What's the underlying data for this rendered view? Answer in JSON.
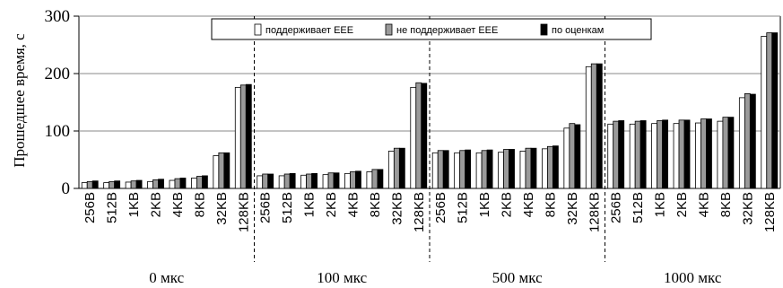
{
  "chart_data": {
    "type": "bar",
    "ylabel": "Прошедшее время, с",
    "ylim": [
      0,
      300
    ],
    "yticks": [
      0,
      100,
      200,
      300
    ],
    "grid": true,
    "legend_position": "top-right",
    "categories": [
      "256B",
      "512B",
      "1KB",
      "2KB",
      "4KB",
      "8KB",
      "32KB",
      "128KB"
    ],
    "groups": [
      "0 мкс",
      "100 мкс",
      "500 мкс",
      "1000 мкс"
    ],
    "series": [
      {
        "name": "поддерживает EEE",
        "color": "#ffffff",
        "values": [
          [
            10,
            10,
            11,
            12,
            14,
            18,
            57,
            176
          ],
          [
            22,
            22,
            23,
            24,
            26,
            29,
            65,
            176
          ],
          [
            62,
            62,
            62,
            63,
            65,
            69,
            105,
            212
          ],
          [
            112,
            112,
            113,
            113,
            114,
            117,
            158,
            265
          ]
        ]
      },
      {
        "name": "не поддерживает EEE",
        "color": "#9a9a9a",
        "values": [
          [
            12,
            12,
            13,
            15,
            17,
            21,
            62,
            180
          ],
          [
            25,
            25,
            25,
            27,
            29,
            33,
            70,
            184
          ],
          [
            66,
            66,
            66,
            68,
            70,
            73,
            113,
            217
          ],
          [
            117,
            117,
            118,
            119,
            121,
            124,
            165,
            271
          ]
        ]
      },
      {
        "name": "по оценкам",
        "color": "#000000",
        "values": [
          [
            13,
            13,
            14,
            16,
            18,
            22,
            62,
            181
          ],
          [
            25,
            26,
            26,
            27,
            30,
            33,
            70,
            183
          ],
          [
            66,
            67,
            67,
            68,
            70,
            74,
            111,
            217
          ],
          [
            118,
            118,
            119,
            119,
            121,
            124,
            164,
            271
          ]
        ]
      }
    ]
  }
}
